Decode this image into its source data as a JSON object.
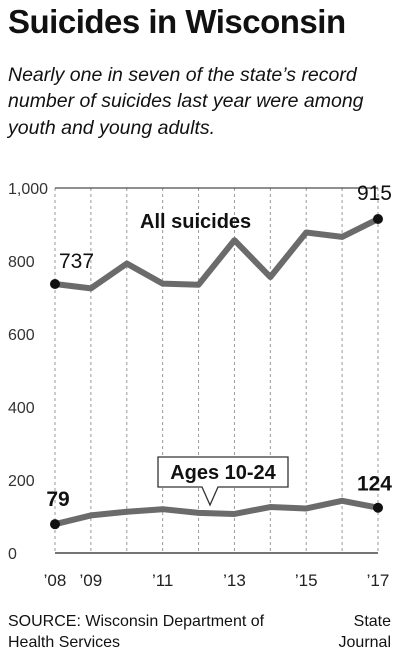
{
  "header": {
    "title": "Suicides in Wisconsin",
    "subtitle": "Nearly one in seven of the state’s record number of suicides last year were among youth and young adults."
  },
  "footer": {
    "source": "SOURCE: Wisconsin Department of Health Services",
    "credit": "State Journal"
  },
  "colors": {
    "line": "#6b6b6b",
    "point": "#111111",
    "grid": "#9a9a9a"
  },
  "chart_data": {
    "type": "line",
    "title": "",
    "xlabel": "",
    "ylabel": "",
    "x": [
      2008,
      2009,
      2010,
      2011,
      2012,
      2013,
      2014,
      2015,
      2016,
      2017
    ],
    "ylim": [
      0,
      1000
    ],
    "yticks": [
      0,
      200,
      400,
      600,
      800,
      1000
    ],
    "ytick_labels": [
      "0",
      "200",
      "400",
      "600",
      "800",
      "1,000"
    ],
    "xtick_values": [
      2008,
      2009,
      2011,
      2013,
      2015,
      2017
    ],
    "xtick_labels": [
      "’08",
      "’09",
      "’11",
      "’13",
      "’15",
      "’17"
    ],
    "grid": "vertical dashed, solid top rule",
    "series": [
      {
        "name": "All suicides",
        "values": [
          737,
          725,
          793,
          738,
          735,
          857,
          756,
          878,
          866,
          915
        ],
        "endpoint_labels": {
          "first": "737",
          "last": "915"
        }
      },
      {
        "name": "Ages 10-24",
        "values": [
          79,
          103,
          113,
          120,
          110,
          107,
          126,
          122,
          143,
          124
        ],
        "endpoint_labels": {
          "first": "79",
          "last": "124"
        }
      }
    ]
  }
}
